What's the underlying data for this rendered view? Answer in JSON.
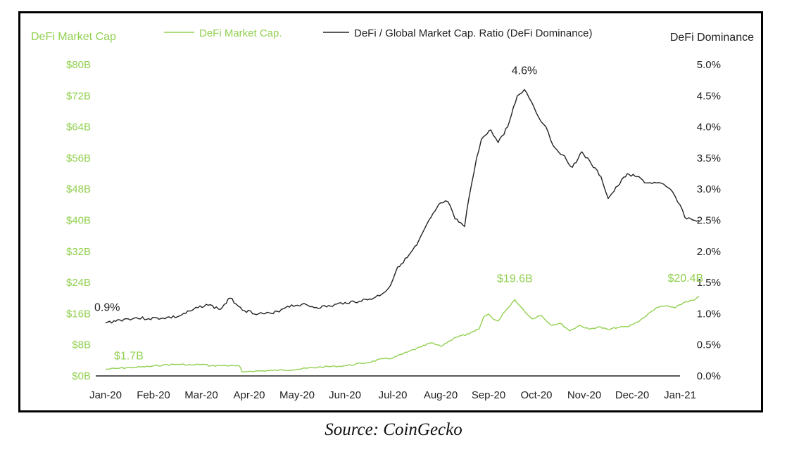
{
  "chart_data": {
    "type": "line",
    "source": "Source: CoinGecko",
    "y_axis_left": {
      "label": "DeFi Market Cap",
      "unit": "$B",
      "range": [
        0,
        80
      ],
      "ticks": [
        0,
        8,
        16,
        24,
        32,
        40,
        48,
        56,
        64,
        72,
        80
      ],
      "tick_labels": [
        "$0B",
        "$8B",
        "$16B",
        "$24B",
        "$32B",
        "$40B",
        "$48B",
        "$56B",
        "$64B",
        "$72B",
        "$80B"
      ],
      "color": "#92d050"
    },
    "y_axis_right": {
      "label": "DeFi Dominance",
      "unit": "%",
      "range": [
        0,
        5
      ],
      "ticks": [
        0,
        0.5,
        1,
        1.5,
        2,
        2.5,
        3,
        3.5,
        4,
        4.5,
        5
      ],
      "tick_labels": [
        "0.0%",
        "0.5%",
        "1.0%",
        "1.5%",
        "2.0%",
        "2.5%",
        "3.0%",
        "3.5%",
        "4.0%",
        "4.5%",
        "5.0%"
      ],
      "color": "#222222"
    },
    "x_axis": {
      "categories": [
        "Jan-20",
        "Feb-20",
        "Mar-20",
        "Apr-20",
        "May-20",
        "Jun-20",
        "Jul-20",
        "Aug-20",
        "Sep-20",
        "Oct-20",
        "Nov-20",
        "Dec-20",
        "Jan-21"
      ]
    },
    "legend": [
      {
        "name": "DeFi Market Cap.",
        "color": "#92d050"
      },
      {
        "name": "DeFi / Global Market Cap. Ratio (DeFi Dominance)",
        "color": "#222222"
      }
    ],
    "series": [
      {
        "name": "DeFi Market Cap.",
        "axis": "left",
        "color": "#92d050",
        "x": [
          0,
          0.3,
          0.6,
          0.9,
          1.2,
          1.5,
          1.8,
          2.0,
          2.2,
          2.5,
          2.8,
          2.85,
          3.0,
          3.5,
          4.0,
          4.5,
          5.0,
          5.5,
          5.8,
          6.0,
          6.3,
          6.6,
          6.8,
          7.0,
          7.3,
          7.6,
          7.8,
          7.9,
          8.0,
          8.1,
          8.2,
          8.3,
          8.45,
          8.55,
          8.7,
          8.9,
          9.1,
          9.3,
          9.5,
          9.7,
          9.9,
          10.1,
          10.3,
          10.5,
          10.7,
          10.9,
          11.1,
          11.3,
          11.5,
          11.7,
          11.9,
          12.1,
          12.3,
          12.4
        ],
        "values": [
          1.7,
          2.0,
          2.2,
          2.4,
          2.8,
          3.0,
          2.8,
          3.0,
          2.6,
          2.7,
          2.5,
          1.0,
          1.2,
          1.4,
          1.7,
          2.3,
          2.6,
          3.5,
          4.4,
          4.6,
          6.1,
          7.5,
          8.5,
          7.6,
          9.9,
          10.8,
          12.0,
          15.2,
          15.9,
          14.6,
          14.1,
          16.0,
          18.0,
          19.6,
          17.4,
          14.7,
          15.6,
          13.1,
          13.5,
          11.6,
          13.0,
          12.0,
          12.6,
          11.9,
          12.5,
          12.6,
          13.8,
          15.5,
          17.5,
          18.0,
          17.5,
          19.0,
          19.5,
          20.4
        ]
      },
      {
        "name": "DeFi / Global Market Cap. Ratio (DeFi Dominance)",
        "axis": "right",
        "color": "#222222",
        "x": [
          0,
          0.3,
          0.6,
          0.9,
          1.2,
          1.5,
          1.8,
          2.1,
          2.4,
          2.6,
          2.9,
          3.2,
          3.5,
          3.8,
          4.1,
          4.4,
          4.7,
          5.0,
          5.3,
          5.6,
          5.8,
          5.95,
          6.1,
          6.3,
          6.5,
          6.8,
          7.0,
          7.15,
          7.3,
          7.5,
          7.6,
          7.75,
          7.85,
          8.05,
          8.2,
          8.4,
          8.6,
          8.75,
          8.9,
          9.05,
          9.2,
          9.35,
          9.55,
          9.75,
          9.95,
          10.15,
          10.35,
          10.5,
          10.7,
          10.9,
          11.1,
          11.3,
          11.5,
          11.7,
          11.85,
          12.0,
          12.1,
          12.3,
          12.4
        ],
        "values": [
          0.85,
          0.9,
          0.93,
          0.92,
          0.93,
          0.95,
          1.05,
          1.15,
          1.07,
          1.25,
          1.05,
          1.0,
          1.0,
          1.12,
          1.15,
          1.1,
          1.12,
          1.18,
          1.2,
          1.25,
          1.33,
          1.45,
          1.75,
          1.9,
          2.1,
          2.55,
          2.78,
          2.8,
          2.52,
          2.4,
          2.9,
          3.5,
          3.8,
          3.95,
          3.75,
          4.0,
          4.5,
          4.6,
          4.4,
          4.15,
          4.0,
          3.7,
          3.55,
          3.35,
          3.6,
          3.4,
          3.2,
          2.85,
          3.05,
          3.25,
          3.2,
          3.1,
          3.1,
          3.05,
          2.95,
          2.75,
          2.55,
          2.5,
          2.5
        ]
      }
    ],
    "annotations": [
      {
        "text": "$1.7B",
        "series": "DeFi Market Cap.",
        "x": 0,
        "value": 1.7
      },
      {
        "text": "$19.6B",
        "series": "DeFi Market Cap.",
        "x": 8.55,
        "value": 19.6
      },
      {
        "text": "$20.4B",
        "series": "DeFi Market Cap.",
        "x": 12.4,
        "value": 20.4
      },
      {
        "text": "0.9%",
        "series": "DeFi / Global Market Cap. Ratio (DeFi Dominance)",
        "x": 0,
        "value": 0.9
      },
      {
        "text": "4.6%",
        "series": "DeFi / Global Market Cap. Ratio (DeFi Dominance)",
        "x": 8.75,
        "value": 4.6
      }
    ]
  }
}
